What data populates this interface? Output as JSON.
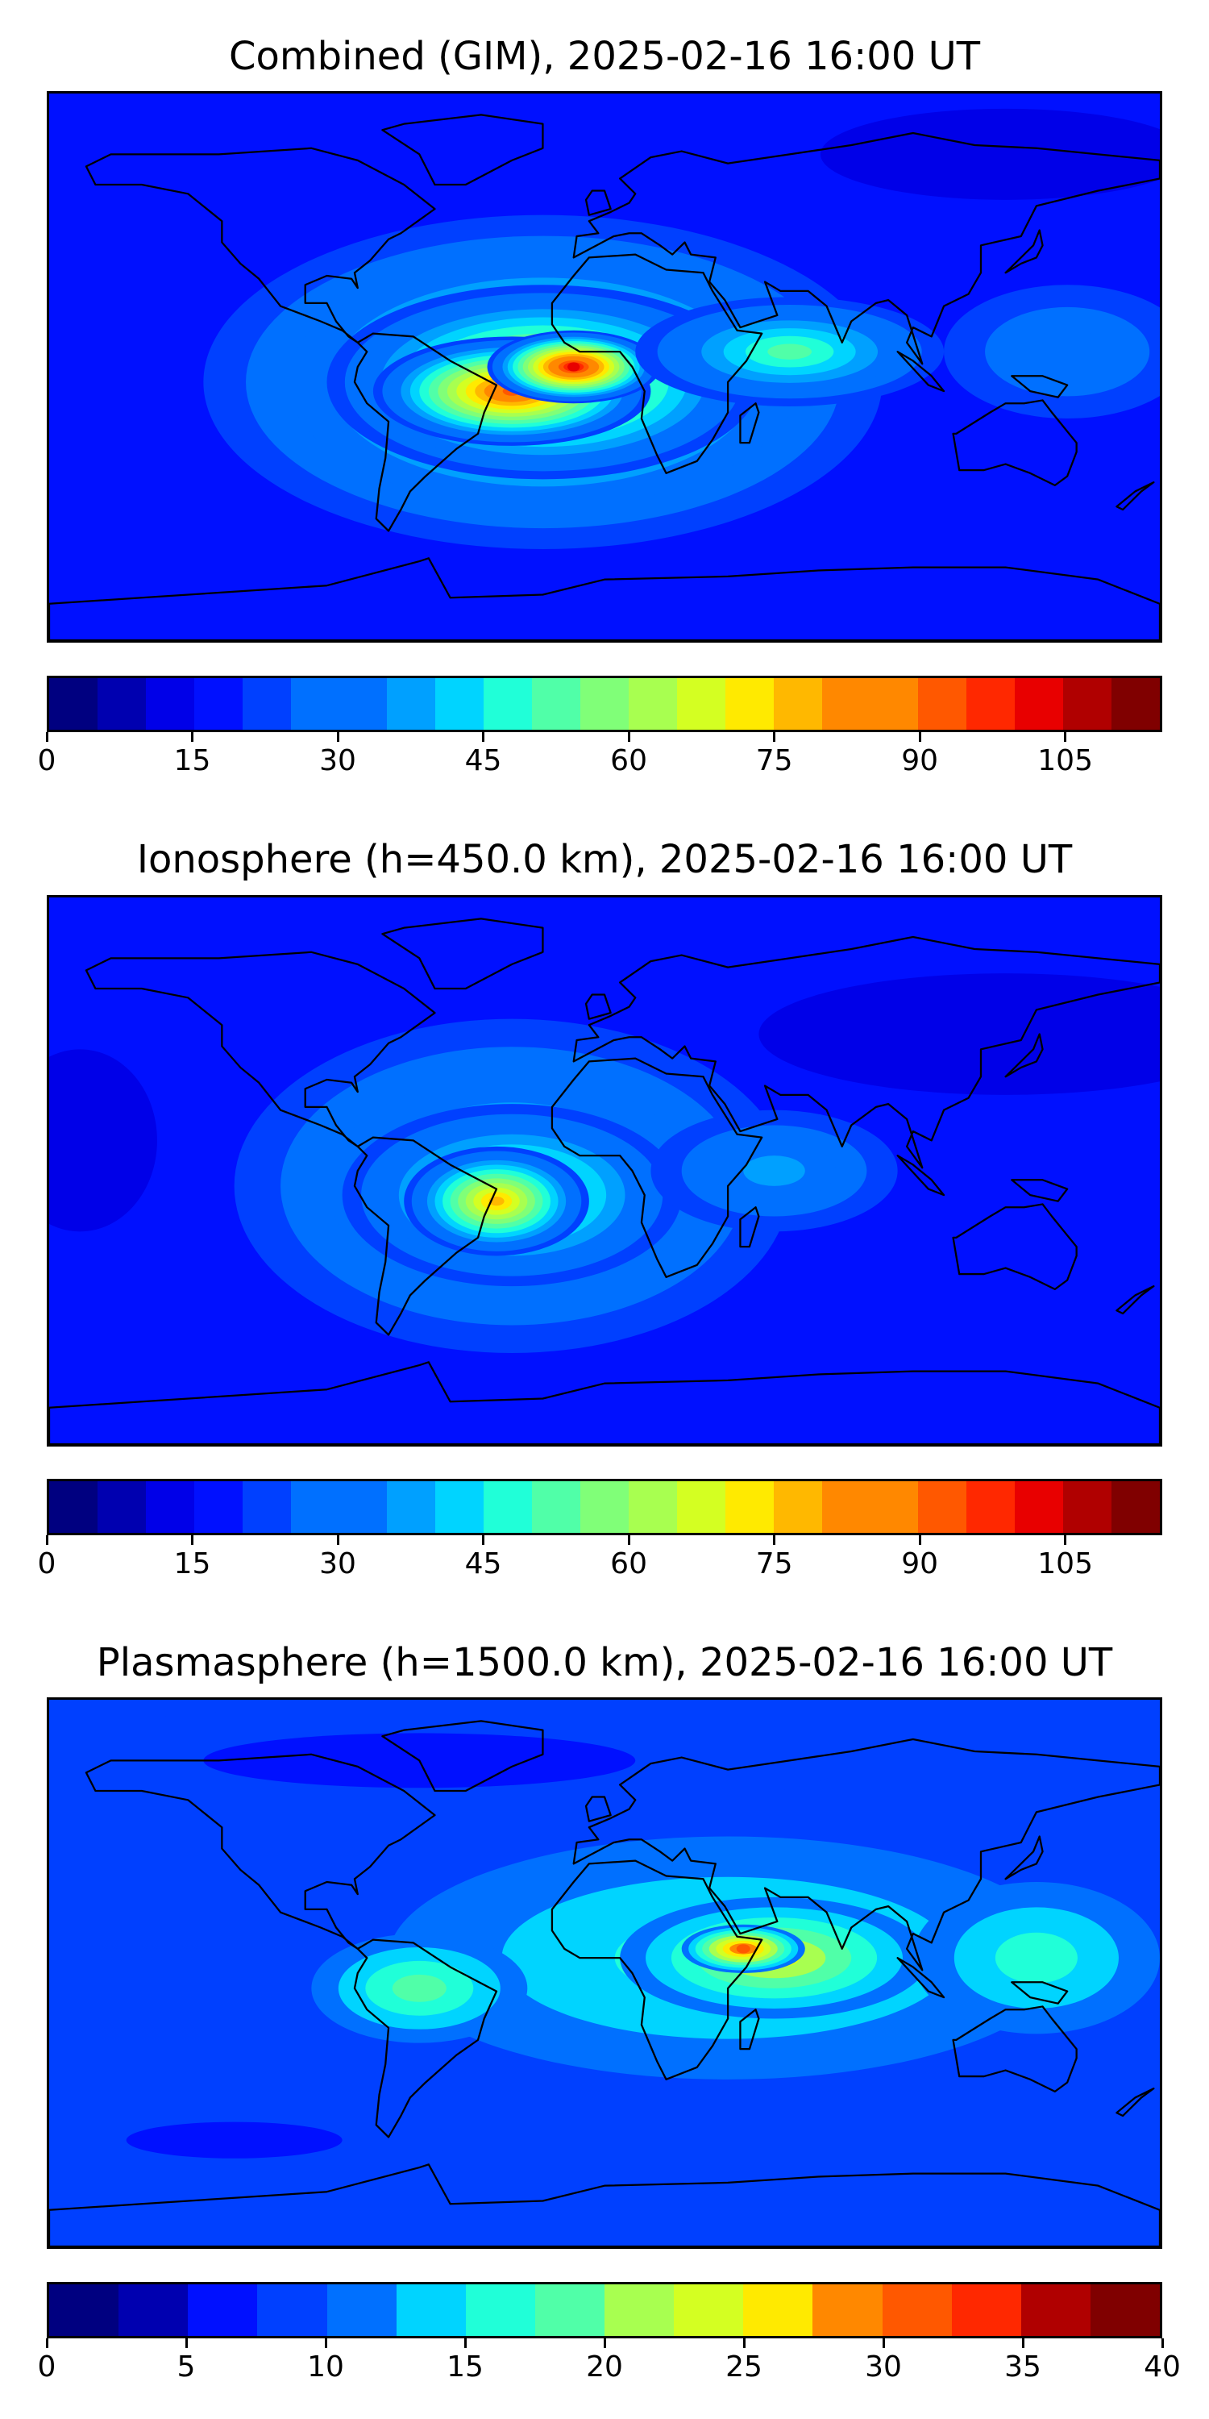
{
  "panels": [
    {
      "title": "Combined (GIM), 2025-02-16 16:00 UT",
      "levels": [
        0,
        5,
        10,
        15,
        20,
        25,
        30,
        35,
        40,
        45,
        50,
        55,
        60,
        65,
        70,
        75,
        80,
        85,
        90,
        95,
        100,
        105,
        110,
        115
      ],
      "ticks": [
        0,
        15,
        30,
        45,
        60,
        75,
        90,
        105
      ],
      "background_level": 15,
      "blobs": [
        {
          "lon": -20,
          "lat": -5,
          "rlon": 110,
          "rlat": 55,
          "value": 55
        },
        {
          "lon": -20,
          "lat": -5,
          "rlon": 70,
          "rlat": 32,
          "value": 75
        },
        {
          "lon": -30,
          "lat": -8,
          "rlon": 45,
          "rlat": 18,
          "value": 90
        },
        {
          "lon": -10,
          "lat": 0,
          "rlon": 28,
          "rlat": 12,
          "value": 100
        },
        {
          "lon": 60,
          "lat": 5,
          "rlon": 50,
          "rlat": 18,
          "value": 50
        },
        {
          "lon": 150,
          "lat": 5,
          "rlon": 40,
          "rlat": 22,
          "value": 32
        },
        {
          "lon": 130,
          "lat": 70,
          "rlon": 60,
          "rlat": 15,
          "value": 8
        }
      ]
    },
    {
      "title": "Ionosphere  (h=450.0 km), 2025-02-16 16:00 UT",
      "levels": [
        0,
        5,
        10,
        15,
        20,
        25,
        30,
        35,
        40,
        45,
        50,
        55,
        60,
        65,
        70,
        75,
        80,
        85,
        90,
        95,
        100,
        105,
        110,
        115
      ],
      "ticks": [
        0,
        15,
        30,
        45,
        60,
        75,
        90,
        105
      ],
      "background_level": 15,
      "blobs": [
        {
          "lon": -30,
          "lat": -5,
          "rlon": 90,
          "rlat": 55,
          "value": 45
        },
        {
          "lon": -30,
          "lat": -8,
          "rlon": 55,
          "rlat": 30,
          "value": 62
        },
        {
          "lon": -35,
          "lat": -10,
          "rlon": 30,
          "rlat": 18,
          "value": 75
        },
        {
          "lon": 55,
          "lat": 0,
          "rlon": 40,
          "rlat": 20,
          "value": 35
        },
        {
          "lon": 130,
          "lat": 45,
          "rlon": 80,
          "rlat": 20,
          "value": 8
        },
        {
          "lon": -170,
          "lat": 10,
          "rlon": 25,
          "rlat": 30,
          "value": 10
        }
      ]
    },
    {
      "title": "Plasmasphere (h=1500.0 km), 2025-02-16 16:00 UT",
      "levels": [
        0,
        2.5,
        5,
        7.5,
        10,
        12.5,
        15,
        17.5,
        20,
        22.5,
        25,
        27.5,
        30,
        32.5,
        35,
        37.5,
        40
      ],
      "ticks": [
        0,
        5,
        10,
        15,
        20,
        25,
        30,
        35,
        40
      ],
      "background_level": 9,
      "blobs": [
        {
          "lon": 40,
          "lat": 5,
          "rlon": 110,
          "rlat": 40,
          "value": 17
        },
        {
          "lon": 55,
          "lat": 5,
          "rlon": 50,
          "rlat": 20,
          "value": 24
        },
        {
          "lon": 45,
          "lat": 8,
          "rlon": 20,
          "rlat": 8,
          "value": 30
        },
        {
          "lon": -60,
          "lat": -5,
          "rlon": 35,
          "rlat": 18,
          "value": 18
        },
        {
          "lon": 140,
          "lat": 5,
          "rlon": 40,
          "rlat": 25,
          "value": 15
        },
        {
          "lon": -60,
          "lat": 70,
          "rlon": 140,
          "rlat": 18,
          "value": 5
        },
        {
          "lon": -120,
          "lat": -55,
          "rlon": 70,
          "rlat": 12,
          "value": 5
        }
      ]
    }
  ],
  "colors": [
    "#000080",
    "#0000b0",
    "#0000e8",
    "#0010ff",
    "#0040ff",
    "#0070ff",
    "#00a0ff",
    "#00d4ff",
    "#20ffd8",
    "#50ffa8",
    "#80ff78",
    "#a8ff50",
    "#d4ff22",
    "#ffea00",
    "#ffb800",
    "#ff8800",
    "#ff5800",
    "#ff2800",
    "#e80000",
    "#b00000",
    "#800000"
  ]
}
